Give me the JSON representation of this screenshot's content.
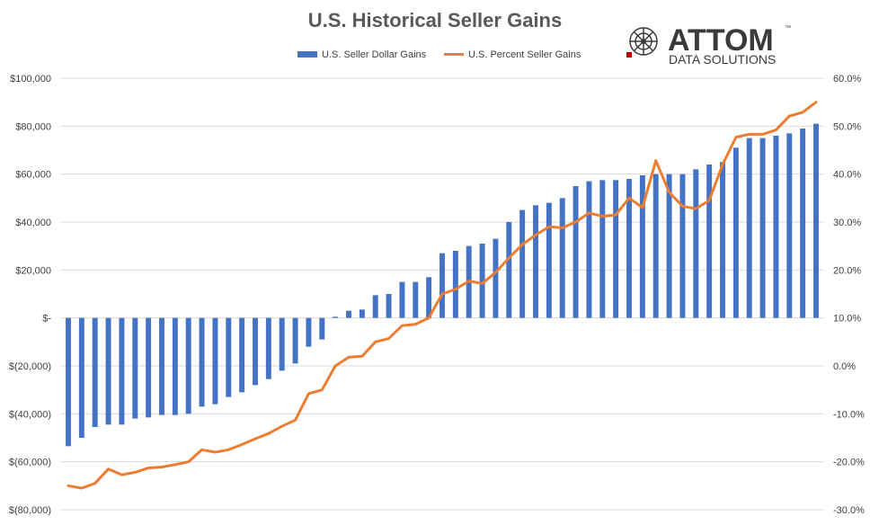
{
  "logo": {
    "brand": "ATTOM",
    "sub": "DATA SOLUTIONS",
    "tm": "™"
  },
  "chart_data": {
    "type": "bar+line",
    "title": "U.S. Historical Seller Gains",
    "legend_position": "top",
    "grid": true,
    "series": [
      {
        "name": "U.S. Seller Dollar Gains",
        "type": "bar",
        "axis": "left",
        "color": "#4472C4",
        "values": [
          -53500,
          -50000,
          -45500,
          -44500,
          -44500,
          -42000,
          -41500,
          -40500,
          -40500,
          -40000,
          -37000,
          -36000,
          -33000,
          -31000,
          -28000,
          -25500,
          -22000,
          -19000,
          -12000,
          -9000,
          500,
          3000,
          3500,
          9500,
          10000,
          15000,
          15000,
          17000,
          27000,
          28000,
          30000,
          31000,
          33000,
          40000,
          45000,
          47000,
          48000,
          50000,
          55000,
          57000,
          57500,
          57500,
          58000,
          59500,
          60000,
          60000,
          60000,
          62000,
          64000,
          65000,
          71000,
          75000,
          75000,
          76000,
          77000,
          79000,
          81000
        ]
      },
      {
        "name": "U.S. Percent Seller Gains",
        "type": "line",
        "axis": "right",
        "color": "#ED7D31",
        "values": [
          -25.0,
          -25.5,
          -24.5,
          -21.5,
          -22.7,
          -22.2,
          -21.3,
          -21.1,
          -20.6,
          -20.0,
          -17.5,
          -18.0,
          -17.5,
          -16.4,
          -15.2,
          -14.1,
          -12.6,
          -11.3,
          -5.8,
          -5.0,
          0.0,
          1.8,
          2.0,
          5.0,
          5.7,
          8.4,
          8.7,
          10.0,
          15.0,
          16.0,
          17.7,
          17.2,
          19.5,
          22.5,
          25.3,
          27.3,
          29.0,
          28.8,
          30.0,
          31.9,
          31.2,
          31.5,
          35.0,
          33.0,
          42.8,
          36.2,
          33.3,
          32.8,
          34.5,
          42.0,
          47.7,
          48.3,
          48.3,
          49.2,
          52.1,
          52.9,
          55.0
        ]
      }
    ],
    "left_axis": {
      "range": [
        -80000,
        100000
      ],
      "ticks": [
        100000,
        80000,
        60000,
        40000,
        20000,
        0,
        -20000,
        -40000,
        -60000,
        -80000
      ],
      "tick_labels": [
        "$100,000",
        "$80,000",
        "$60,000",
        "$40,000",
        "$20,000",
        "$-",
        "$(20,000)",
        "$(40,000)",
        "$(60,000)",
        "$(80,000)"
      ]
    },
    "right_axis": {
      "range": [
        -30,
        60
      ],
      "ticks": [
        60,
        50,
        40,
        30,
        20,
        10,
        0,
        -10,
        -20,
        -30
      ],
      "tick_labels": [
        "60.0%",
        "50.0%",
        "40.0%",
        "30.0%",
        "20.0%",
        "10.0%",
        "0.0%",
        "-10.0%",
        "-20.0%",
        "-30.0%"
      ]
    }
  }
}
